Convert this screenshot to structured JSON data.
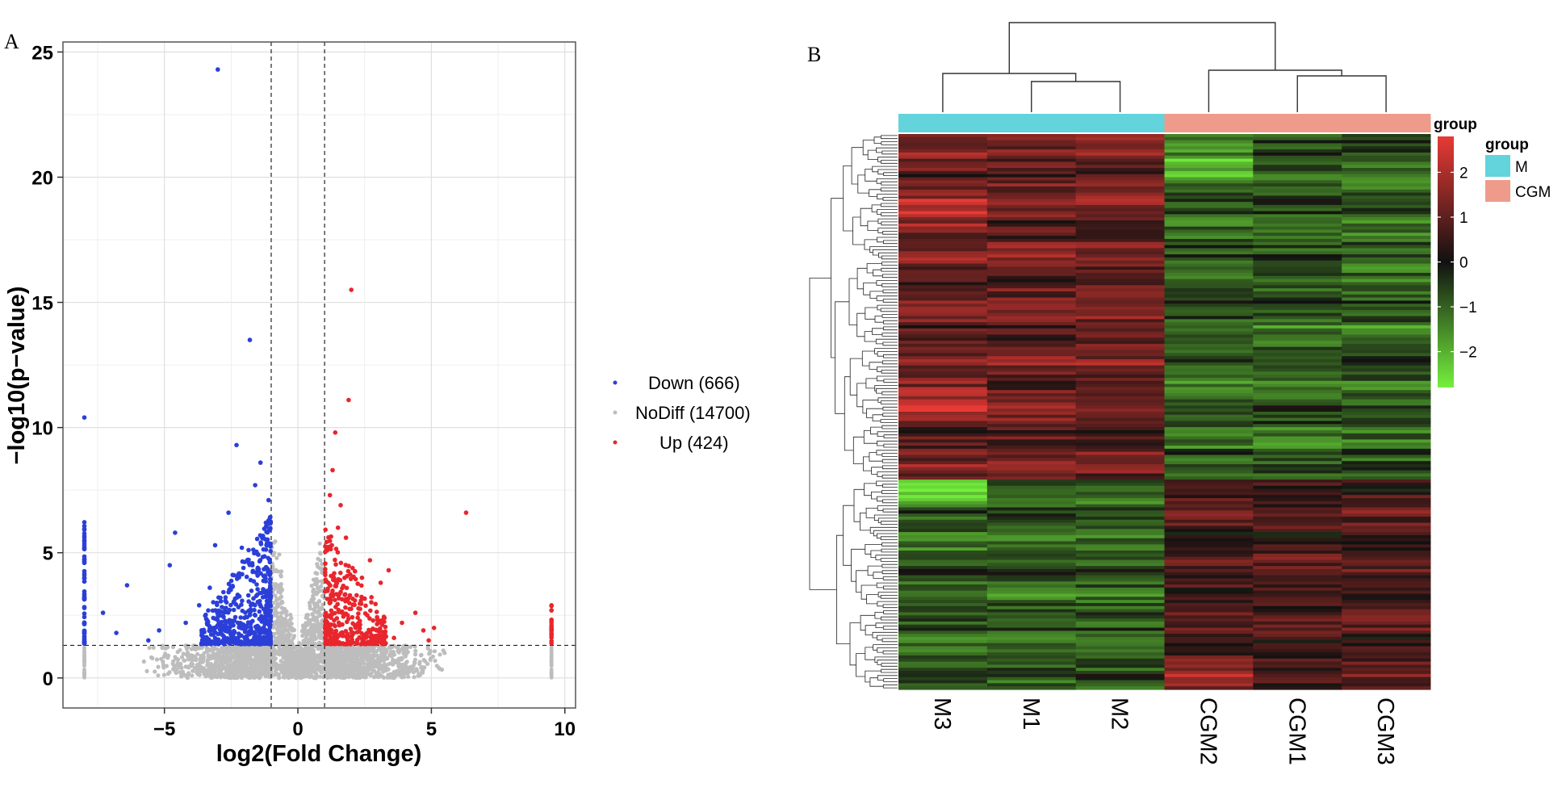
{
  "panel_labels": {
    "a": "A",
    "b": "B"
  },
  "chart_data": [
    {
      "type": "scatter",
      "subtype": "volcano",
      "xlabel": "log2(Fold Change)",
      "ylabel": "−log10(p−value)",
      "xlim": [
        -8.8,
        10.4
      ],
      "ylim": [
        -1.2,
        25.4
      ],
      "x_ticks": [
        -5,
        0,
        5,
        10
      ],
      "x_tick_labels": [
        "−5",
        "0",
        "5",
        "10"
      ],
      "y_ticks": [
        0,
        5,
        10,
        15,
        20,
        25
      ],
      "y_tick_labels": [
        "0",
        "5",
        "10",
        "15",
        "20",
        "25"
      ],
      "grid": true,
      "thresholds": {
        "log2fc": [
          -1,
          1
        ],
        "neg_log10_p": 1.3
      },
      "legend_position": "right",
      "series": [
        {
          "name": "Down (666)",
          "color": "#2b3fd8",
          "points": [
            [
              -3.0,
              24.3
            ],
            [
              -1.8,
              13.5
            ],
            [
              -8.0,
              10.4
            ],
            [
              -2.3,
              9.3
            ],
            [
              -1.4,
              8.6
            ],
            [
              -1.6,
              7.7
            ],
            [
              -2.6,
              6.6
            ],
            [
              -4.6,
              5.8
            ],
            [
              -3.1,
              5.3
            ],
            [
              -2.1,
              5.2
            ],
            [
              -4.8,
              4.5
            ],
            [
              -6.4,
              3.7
            ],
            [
              -3.3,
              3.6
            ],
            [
              -7.3,
              2.6
            ],
            [
              -5.2,
              1.9
            ],
            [
              -6.8,
              1.8
            ],
            [
              -4.2,
              2.2
            ],
            [
              -5.6,
              1.5
            ],
            [
              -3.7,
              2.9
            ],
            [
              -2.9,
              3.2
            ],
            [
              -2.4,
              4.1
            ],
            [
              -1.2,
              6.2
            ],
            [
              -1.1,
              7.1
            ],
            [
              -1.3,
              5.6
            ],
            [
              -1.5,
              4.4
            ]
          ]
        },
        {
          "name": "NoDiff (14700)",
          "color": "#bdbdbd",
          "points": []
        },
        {
          "name": "Up (424)",
          "color": "#e8262c",
          "points": [
            [
              2.0,
              15.5
            ],
            [
              1.9,
              11.1
            ],
            [
              1.4,
              9.8
            ],
            [
              1.3,
              8.3
            ],
            [
              6.3,
              6.6
            ],
            [
              1.2,
              7.3
            ],
            [
              1.6,
              6.9
            ],
            [
              2.7,
              4.7
            ],
            [
              3.4,
              4.3
            ],
            [
              2.4,
              4.0
            ],
            [
              3.1,
              3.8
            ],
            [
              2.2,
              3.3
            ],
            [
              4.4,
              2.6
            ],
            [
              3.9,
              2.2
            ],
            [
              4.7,
              1.9
            ],
            [
              5.1,
              2.0
            ],
            [
              3.6,
              1.6
            ],
            [
              4.9,
              1.5
            ],
            [
              2.6,
              2.5
            ],
            [
              1.8,
              5.6
            ],
            [
              1.5,
              6.0
            ],
            [
              1.1,
              5.1
            ],
            [
              9.5,
              2.9
            ]
          ]
        }
      ]
    },
    {
      "type": "heatmap",
      "columns": [
        "M3",
        "M1",
        "M2",
        "CGM2",
        "CGM1",
        "CGM3"
      ],
      "column_groups": [
        "M",
        "M",
        "M",
        "CGM",
        "CGM",
        "CGM"
      ],
      "row_count": 180,
      "color_scale": {
        "min": -2.8,
        "max": 2.8,
        "low": "#74f03c",
        "mid": "#111111",
        "high": "#e83a35",
        "ticks": [
          "2",
          "1",
          "0",
          "−1",
          "−2"
        ]
      },
      "annotation": {
        "title": "group",
        "legend_title": "group",
        "groups": [
          {
            "name": "M",
            "color": "#63d3dc"
          },
          {
            "name": "CGM",
            "color": "#ef9b8c"
          }
        ]
      },
      "column_dendrogram": true,
      "row_dendrogram": true
    }
  ]
}
